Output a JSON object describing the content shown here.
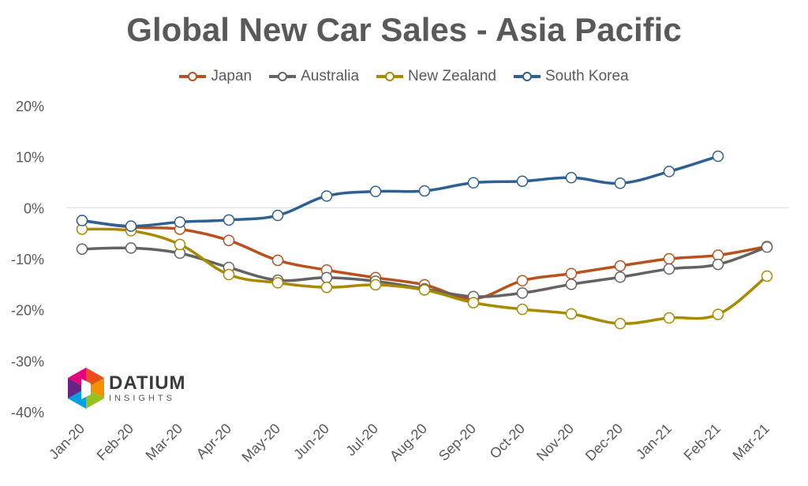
{
  "chart_data": {
    "type": "line",
    "title": "Global New Car Sales - Asia Pacific",
    "categories": [
      "Jan-20",
      "Feb-20",
      "Mar-20",
      "Apr-20",
      "May-20",
      "Jun-20",
      "Jul-20",
      "Aug-20",
      "Sep-20",
      "Oct-20",
      "Nov-20",
      "Dec-20",
      "Jan-21",
      "Feb-21",
      "Mar-21"
    ],
    "ylim": [
      -40,
      20
    ],
    "yticks": [
      "20%",
      "10%",
      "0%",
      "-10%",
      "-20%",
      "-30%",
      "-40%"
    ],
    "ytick_values": [
      20,
      10,
      0,
      -10,
      -20,
      -30,
      -40
    ],
    "legend_position": "top",
    "series": [
      {
        "name": "Japan",
        "color": "#B8511D",
        "values": [
          -2.5,
          -3.8,
          -4.2,
          -6.4,
          -10.3,
          -12.2,
          -13.7,
          -15.1,
          -17.8,
          -14.3,
          -12.9,
          -11.4,
          -10.0,
          -9.3,
          -7.6
        ]
      },
      {
        "name": "Australia",
        "color": "#636363",
        "values": [
          -8.1,
          -7.9,
          -8.9,
          -11.7,
          -14.2,
          -13.7,
          -14.4,
          -15.9,
          -17.4,
          -16.7,
          -15.0,
          -13.6,
          -12.0,
          -11.1,
          -7.7
        ]
      },
      {
        "name": "New Zealand",
        "color": "#A88A00",
        "values": [
          -4.2,
          -4.5,
          -7.2,
          -13.1,
          -14.7,
          -15.6,
          -15.1,
          -16.1,
          -18.6,
          -19.9,
          -20.8,
          -22.7,
          -21.6,
          -20.9,
          -13.4
        ]
      },
      {
        "name": "South Korea",
        "color": "#2E6094",
        "values": [
          -2.5,
          -3.6,
          -2.8,
          -2.4,
          -1.5,
          2.3,
          3.2,
          3.3,
          4.9,
          5.2,
          5.9,
          4.8,
          7.1,
          10.1,
          null
        ]
      }
    ]
  },
  "logo": {
    "name": "DATIUM",
    "subtitle": "INSIGHTS"
  }
}
